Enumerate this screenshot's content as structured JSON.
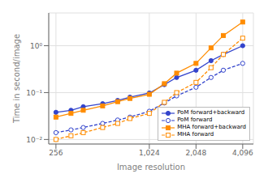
{
  "chart_data": {
    "type": "line",
    "xlabel": "Image resolution",
    "ylabel": "Time in second/image",
    "x": [
      256,
      320,
      384,
      512,
      640,
      768,
      1024,
      1280,
      1536,
      2048,
      2560,
      3072,
      4096
    ],
    "series": [
      {
        "name": "PoM forward+backward",
        "color": "#3344cc",
        "marker": "circle",
        "line_style": "solid",
        "values": [
          0.038,
          0.042,
          0.05,
          0.058,
          0.068,
          0.08,
          0.098,
          0.148,
          0.21,
          0.3,
          0.48,
          0.65,
          1.0
        ]
      },
      {
        "name": "PoM forward",
        "color": "#3344cc",
        "marker": "circle_open",
        "line_style": "dashed",
        "values": [
          0.014,
          0.016,
          0.018,
          0.022,
          0.026,
          0.03,
          0.04,
          0.06,
          0.085,
          0.13,
          0.21,
          0.3,
          0.42
        ]
      },
      {
        "name": "MHA forward+backward",
        "color": "#ff8c00",
        "marker": "square",
        "line_style": "solid",
        "values": [
          0.03,
          0.036,
          0.042,
          0.052,
          0.064,
          0.075,
          0.092,
          0.155,
          0.26,
          0.42,
          0.9,
          1.65,
          3.2
        ]
      },
      {
        "name": "MHA forward",
        "color": "#ff8c00",
        "marker": "square_open",
        "line_style": "dashed",
        "values": [
          0.01,
          0.012,
          0.014,
          0.018,
          0.022,
          0.028,
          0.036,
          0.062,
          0.1,
          0.165,
          0.34,
          0.65,
          1.45
        ]
      }
    ],
    "xlim": [
      230,
      4800
    ],
    "xticks": [
      {
        "value": 256,
        "label": "256"
      },
      {
        "value": 1024,
        "label": "1,024"
      },
      {
        "value": 2048,
        "label": "2,048"
      },
      {
        "value": 4096,
        "label": "4,096"
      }
    ],
    "ylim": [
      0.008,
      5.0
    ],
    "yticks": [
      {
        "value": 0.01,
        "label": "10⁻²"
      },
      {
        "value": 0.1,
        "label": "10⁻¹"
      },
      {
        "value": 1,
        "label": "10⁰"
      }
    ],
    "log": true,
    "grid": true,
    "legend": "lower right"
  }
}
